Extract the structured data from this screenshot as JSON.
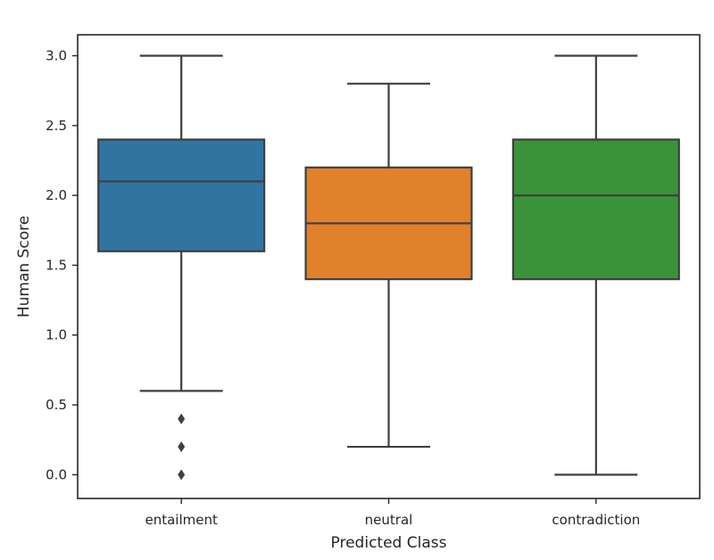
{
  "chart_data": {
    "type": "box",
    "xlabel": "Predicted Class",
    "ylabel": "Human Score",
    "ylim": [
      -0.17,
      3.15
    ],
    "yticks": [
      "0.0",
      "0.5",
      "1.0",
      "1.5",
      "2.0",
      "2.5",
      "3.0"
    ],
    "grid": false,
    "legend": "none",
    "categories": [
      "entailment",
      "neutral",
      "contradiction"
    ],
    "boxes": [
      {
        "category": "entailment",
        "whisker_low": 0.6,
        "q1": 1.6,
        "median": 2.1,
        "q3": 2.4,
        "whisker_high": 3.0,
        "outliers": [
          0.4,
          0.2,
          0.0
        ],
        "color": "#3274a1"
      },
      {
        "category": "neutral",
        "whisker_low": 0.2,
        "q1": 1.4,
        "median": 1.8,
        "q3": 2.2,
        "whisker_high": 2.8,
        "outliers": [],
        "color": "#e1812c"
      },
      {
        "category": "contradiction",
        "whisker_low": 0.0,
        "q1": 1.4,
        "median": 2.0,
        "q3": 2.4,
        "whisker_high": 3.0,
        "outliers": [],
        "color": "#3a923a"
      }
    ],
    "line_color": "#3f3f3f"
  }
}
